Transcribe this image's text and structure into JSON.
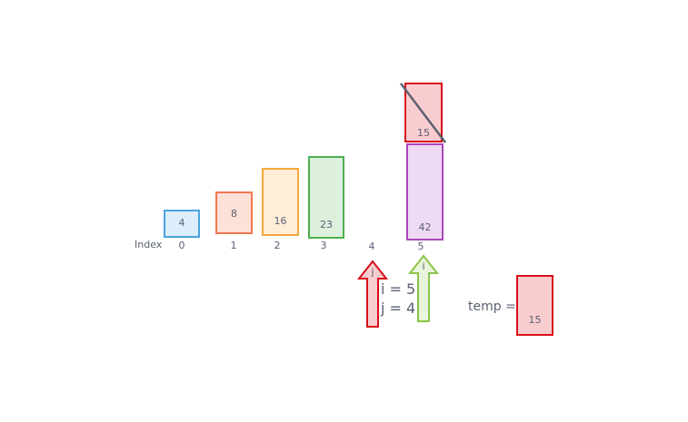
{
  "index_label": "Index",
  "indices": [
    "0",
    "1",
    "2",
    "3",
    "4",
    "5"
  ],
  "array": [
    {
      "value": "4",
      "border": "#4aa3df",
      "fill": "#dbeefa"
    },
    {
      "value": "8",
      "border": "#f07850",
      "fill": "#fde0d6"
    },
    {
      "value": "16",
      "border": "#f5a93b",
      "fill": "#feeed6"
    },
    {
      "value": "23",
      "border": "#4caf50",
      "fill": "#deefde"
    },
    {
      "value": "42",
      "border": "#ab47bc",
      "fill": "#eedaf2"
    }
  ],
  "moving_box": {
    "value": "15",
    "border": "#d80f1a",
    "fill": "#f9cdd0",
    "crossed_out": true
  },
  "pointer_j": {
    "label": "j",
    "border": "#d80f1a",
    "fill": "#f9cdd0"
  },
  "pointer_i": {
    "label": "i",
    "border": "#8bc34a",
    "fill": "#e9f4dc"
  },
  "vars": {
    "i": "i = 5",
    "j": "j = 4"
  },
  "temp": {
    "label": "temp =",
    "value": "15",
    "border": "#d80f1a",
    "fill": "#f9cdd0"
  },
  "strike_color": "#5c6170"
}
